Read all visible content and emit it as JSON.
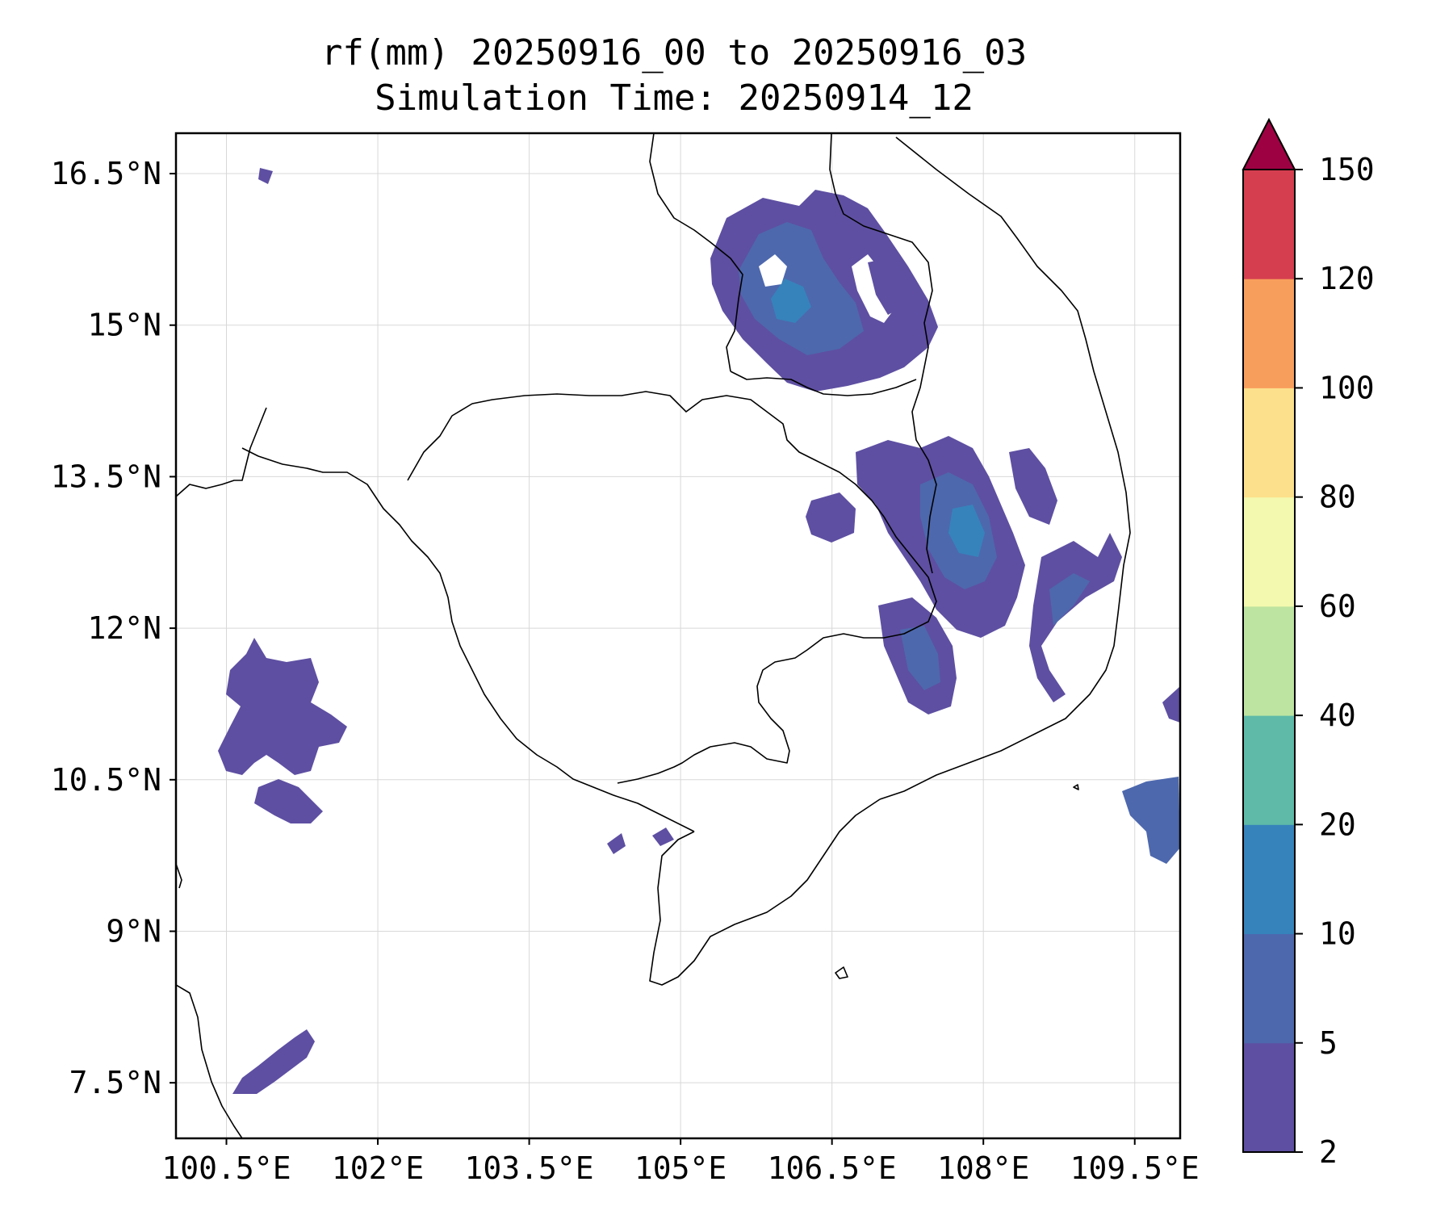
{
  "title": {
    "line1": "rf(mm) 20250916_00 to 20250916_03",
    "line2": "Simulation Time: 20250914_12"
  },
  "map": {
    "lon_range": [
      100.0,
      109.95
    ],
    "lat_range": [
      6.95,
      16.9
    ],
    "lon_ticks": [
      {
        "value": 100.5,
        "label": "100.5°E"
      },
      {
        "value": 102.0,
        "label": "102°E"
      },
      {
        "value": 103.5,
        "label": "103.5°E"
      },
      {
        "value": 105.0,
        "label": "105°E"
      },
      {
        "value": 106.5,
        "label": "106.5°E"
      },
      {
        "value": 108.0,
        "label": "108°E"
      },
      {
        "value": 109.5,
        "label": "109.5°E"
      }
    ],
    "lat_ticks": [
      {
        "value": 16.5,
        "label": "16.5°N"
      },
      {
        "value": 15.0,
        "label": "15°N"
      },
      {
        "value": 13.5,
        "label": "13.5°N"
      },
      {
        "value": 12.0,
        "label": "12°N"
      },
      {
        "value": 10.5,
        "label": "10.5°N"
      },
      {
        "value": 9.0,
        "label": "9°N"
      },
      {
        "value": 7.5,
        "label": "7.5°N"
      }
    ],
    "gridlines": true
  },
  "colorbar": {
    "levels": [
      "2",
      "5",
      "10",
      "20",
      "40",
      "60",
      "80",
      "100",
      "120",
      "150"
    ],
    "colors": [
      "#5e4fa2",
      "#4d68ad",
      "#3683bb",
      "#5fbaa8",
      "#bde4a0",
      "#f3f9ae",
      "#fde08b",
      "#f89e5d",
      "#d53e4f",
      "#9e0142"
    ],
    "extend": "max"
  }
}
